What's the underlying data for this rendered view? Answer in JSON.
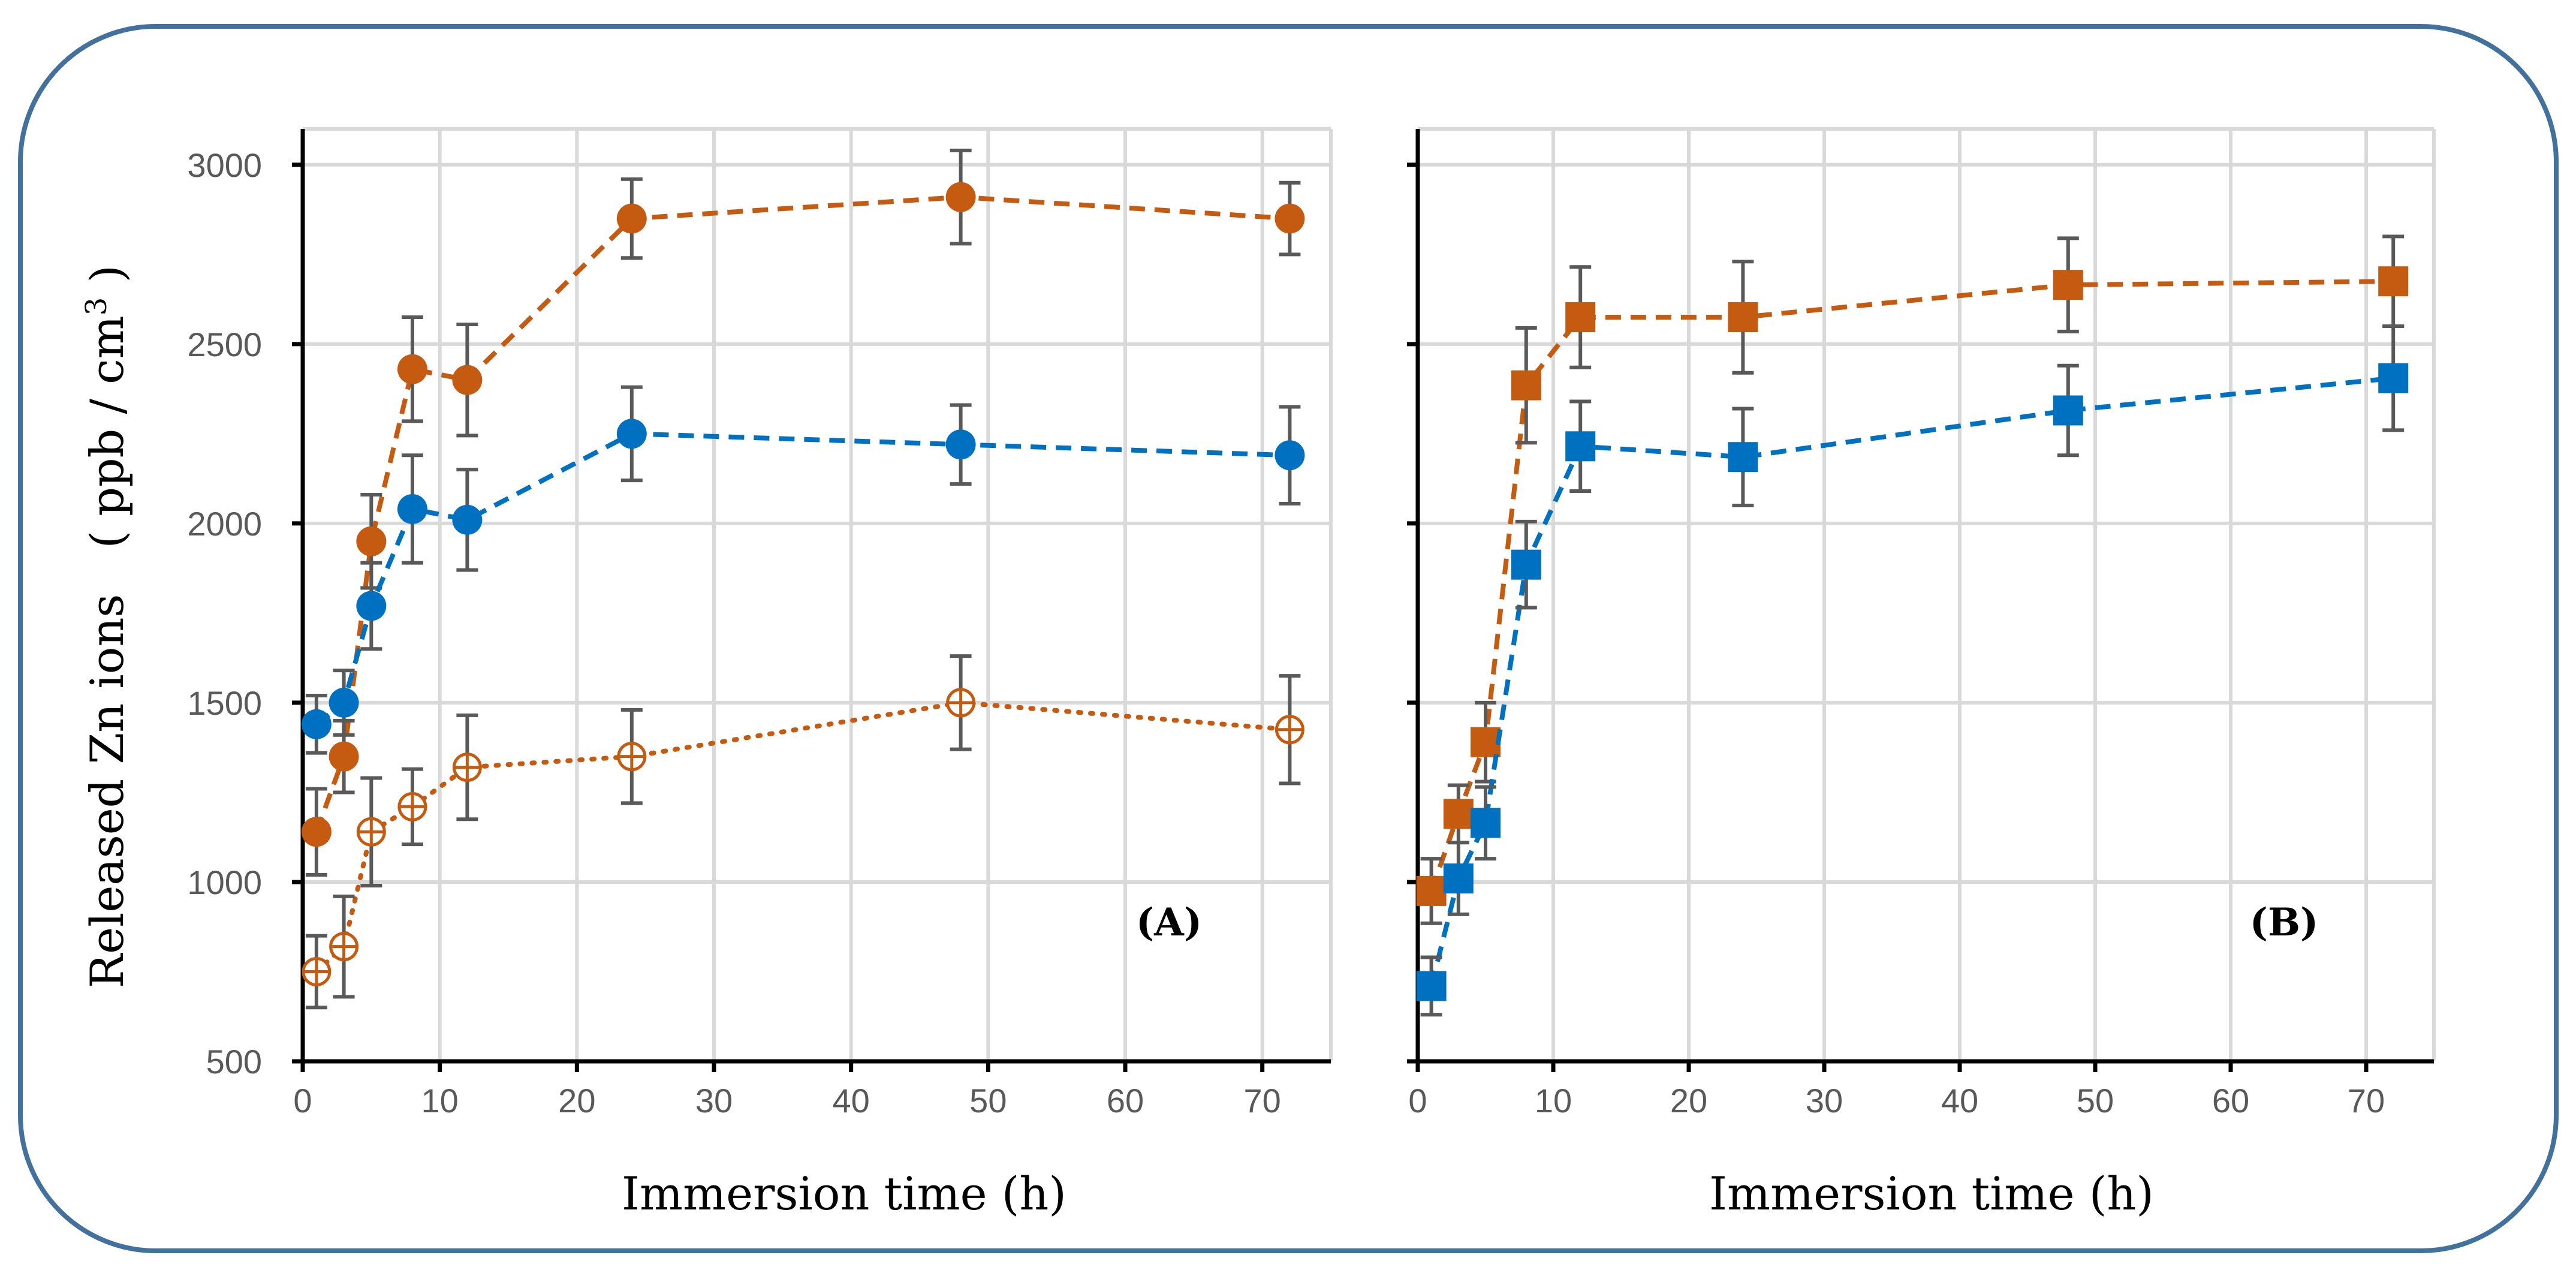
{
  "chart_data": [
    {
      "id": "A",
      "type": "line",
      "panel_label": "(A)",
      "xlabel": "Immersion time (h)",
      "ylabel": "Released Zn ions　( ppb / cm",
      "ylabel_sup": "3",
      "ylabel_end": " )",
      "xlim": [
        0,
        75
      ],
      "ylim": [
        500,
        3100
      ],
      "xticks": [
        0,
        10,
        20,
        30,
        40,
        50,
        60,
        70
      ],
      "yticks": [
        500,
        1000,
        1500,
        2000,
        2500,
        3000
      ],
      "x": [
        1,
        3,
        5,
        8,
        12,
        24,
        48,
        72
      ],
      "series": [
        {
          "name": "orange-filled",
          "color": "#c55a11",
          "marker": "circle",
          "filled": true,
          "dash": "dashed",
          "values": [
            1140,
            1350,
            1950,
            2430,
            2400,
            2850,
            2910,
            2850
          ],
          "errors": [
            120,
            100,
            130,
            145,
            155,
            110,
            130,
            100
          ]
        },
        {
          "name": "blue-filled",
          "color": "#0070c0",
          "marker": "circle",
          "filled": true,
          "dash": "dashed",
          "values": [
            1440,
            1500,
            1770,
            2040,
            2010,
            2250,
            2220,
            2190
          ],
          "errors": [
            80,
            90,
            120,
            150,
            140,
            130,
            110,
            135
          ]
        },
        {
          "name": "orange-open",
          "color": "#c55a11",
          "marker": "circle",
          "filled": false,
          "dash": "dotted",
          "values": [
            750,
            820,
            1140,
            1210,
            1320,
            1350,
            1500,
            1425
          ],
          "errors": [
            100,
            140,
            150,
            105,
            145,
            130,
            130,
            150
          ]
        }
      ]
    },
    {
      "id": "B",
      "type": "line",
      "panel_label": "(B)",
      "xlabel": "Immersion time (h)",
      "xlim": [
        0,
        75
      ],
      "ylim": [
        500,
        3100
      ],
      "xticks": [
        0,
        10,
        20,
        30,
        40,
        50,
        60,
        70
      ],
      "x": [
        1,
        3,
        5,
        8,
        12,
        24,
        48,
        72
      ],
      "series": [
        {
          "name": "orange-square",
          "color": "#c55a11",
          "marker": "square",
          "filled": true,
          "dash": "dashed",
          "values": [
            975,
            1190,
            1390,
            2385,
            2575,
            2575,
            2665,
            2675
          ],
          "errors": [
            90,
            80,
            110,
            160,
            140,
            155,
            130,
            125
          ]
        },
        {
          "name": "blue-square",
          "color": "#0070c0",
          "marker": "square",
          "filled": true,
          "dash": "dashed",
          "values": [
            710,
            1010,
            1165,
            1885,
            2215,
            2185,
            2315,
            2405
          ],
          "errors": [
            80,
            100,
            100,
            120,
            125,
            135,
            125,
            145
          ]
        }
      ]
    }
  ]
}
